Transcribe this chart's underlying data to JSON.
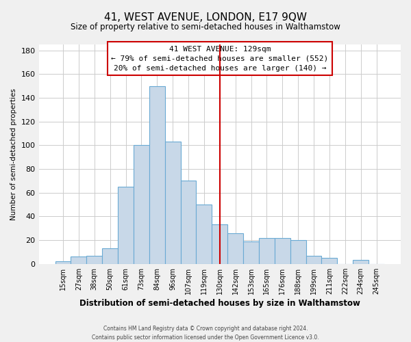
{
  "title": "41, WEST AVENUE, LONDON, E17 9QW",
  "subtitle": "Size of property relative to semi-detached houses in Walthamstow",
  "xlabel": "Distribution of semi-detached houses by size in Walthamstow",
  "ylabel": "Number of semi-detached properties",
  "footnote1": "Contains HM Land Registry data © Crown copyright and database right 2024.",
  "footnote2": "Contains public sector information licensed under the Open Government Licence v3.0.",
  "bar_labels": [
    "15sqm",
    "27sqm",
    "38sqm",
    "50sqm",
    "61sqm",
    "73sqm",
    "84sqm",
    "96sqm",
    "107sqm",
    "119sqm",
    "130sqm",
    "142sqm",
    "153sqm",
    "165sqm",
    "176sqm",
    "188sqm",
    "199sqm",
    "211sqm",
    "222sqm",
    "234sqm",
    "245sqm"
  ],
  "bar_values": [
    2,
    6,
    7,
    13,
    65,
    100,
    150,
    103,
    70,
    50,
    33,
    26,
    19,
    22,
    22,
    20,
    7,
    5,
    0,
    3,
    0
  ],
  "bar_color": "#c8d8e8",
  "bar_edge_color": "#6aaad4",
  "vline_x": 10.0,
  "vline_color": "#cc0000",
  "ylim": [
    0,
    185
  ],
  "yticks": [
    0,
    20,
    40,
    60,
    80,
    100,
    120,
    140,
    160,
    180
  ],
  "annotation_title": "41 WEST AVENUE: 129sqm",
  "annotation_line1": "← 79% of semi-detached houses are smaller (552)",
  "annotation_line2": "20% of semi-detached houses are larger (140) →",
  "bg_color": "#f0f0f0",
  "plot_bg_color": "#ffffff",
  "grid_color": "#cccccc"
}
